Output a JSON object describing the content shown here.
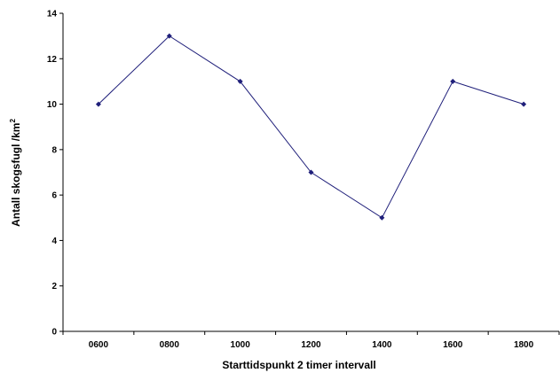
{
  "chart_data": {
    "type": "line",
    "title": "",
    "xlabel": "Starttidspunkt 2 timer intervall",
    "ylabel": "Antall skogsfugl /km",
    "ylabel_superscript": "2",
    "categories": [
      "0600",
      "0800",
      "1000",
      "1200",
      "1400",
      "1600",
      "1800"
    ],
    "yticks": [
      "0",
      "2",
      "4",
      "6",
      "8",
      "10",
      "12",
      "14"
    ],
    "ylim": [
      0,
      14
    ],
    "grid": false,
    "legend": "none",
    "series": [
      {
        "values": [
          10,
          13,
          11,
          7,
          5,
          11,
          10
        ],
        "color": "#1f1f7a"
      }
    ]
  }
}
